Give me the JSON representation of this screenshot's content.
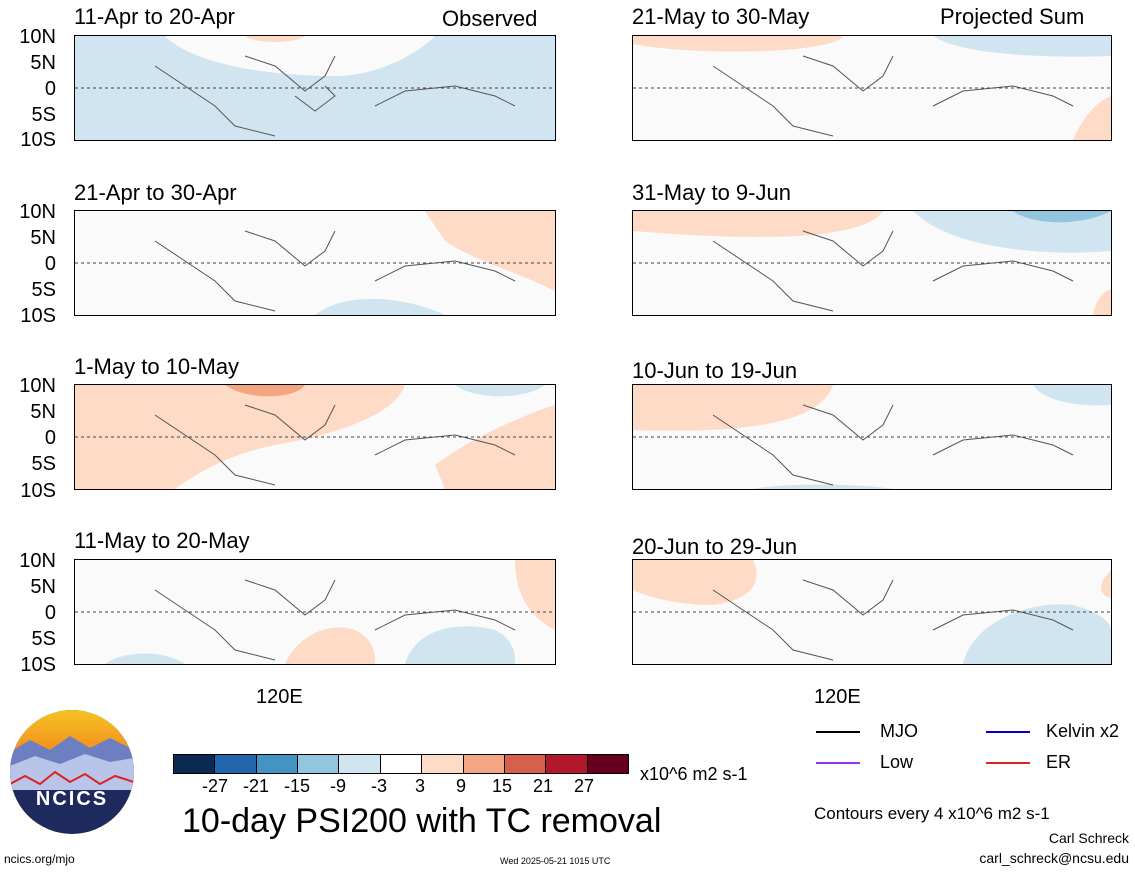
{
  "panels_left": [
    {
      "title": "11-Apr to 20-Apr"
    },
    {
      "title": "21-Apr to 30-Apr"
    },
    {
      "title": "1-May to 10-May"
    },
    {
      "title": "11-May to 20-May"
    }
  ],
  "panels_right": [
    {
      "title": "21-May to 30-May"
    },
    {
      "title": "31-May to 9-Jun"
    },
    {
      "title": "10-Jun to 19-Jun"
    },
    {
      "title": "20-Jun to 29-Jun"
    }
  ],
  "column_labels": {
    "left": "Observed",
    "right": "Projected Sum"
  },
  "lat_labels": [
    "10N",
    "5N",
    "0",
    "5S",
    "10S"
  ],
  "lon_label": "120E",
  "colorbar": {
    "colors": [
      "#0a2a52",
      "#2166ac",
      "#4393c3",
      "#92c5de",
      "#d1e5f0",
      "#ffffff",
      "#fddbc7",
      "#f4a582",
      "#d6604d",
      "#b2182b",
      "#67001f"
    ],
    "labels": [
      "-27",
      "-21",
      "-15",
      "-9",
      "-3",
      "3",
      "9",
      "15",
      "21",
      "27"
    ],
    "units": "x10^6 m2 s-1"
  },
  "title": "10-day PSI200 with TC removal",
  "legend": [
    {
      "label": "MJO",
      "color": "#000000"
    },
    {
      "label": "Kelvin x2",
      "color": "#0000cc"
    },
    {
      "label": "Low",
      "color": "#9933ee"
    },
    {
      "label": "ER",
      "color": "#dd2222"
    }
  ],
  "contours_note": "Contours every 4 x10^6 m2 s-1",
  "author": "Carl Schreck",
  "email": "carl_schreck@ncsu.edu",
  "site": "ncics.org/mjo",
  "timestamp": "Wed 2025-05-21 1015 UTC",
  "logo_text": "NCICS"
}
